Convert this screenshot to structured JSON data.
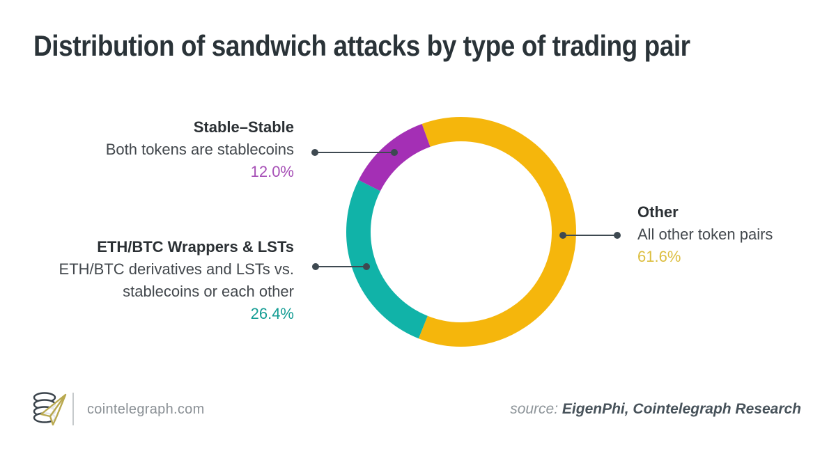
{
  "title": "Distribution of sandwich attacks by type of trading pair",
  "chart_data": {
    "type": "pie",
    "subtype": "donut",
    "title": "Distribution of sandwich attacks by type of trading pair",
    "start_angle_deg": -20,
    "legend_position": "callouts",
    "segments": [
      {
        "label": "Other",
        "desc_lines": [
          "All other token pairs"
        ],
        "value": 61.6,
        "display": "61.6%",
        "color": "#F5B60C",
        "pct_color": "#DCBE3F"
      },
      {
        "label": "ETH/BTC Wrappers & LSTs",
        "desc_lines": [
          "ETH/BTC derivatives and LSTs vs.",
          "stablecoins or each other"
        ],
        "value": 26.4,
        "display": "26.4%",
        "color": "#11B3A8",
        "pct_color": "#149D94"
      },
      {
        "label": "Stable–Stable",
        "desc_lines": [
          "Both tokens are stablecoins"
        ],
        "value": 12.0,
        "display": "12.0%",
        "color": "#A42FB5",
        "pct_color": "#A64FB6"
      }
    ]
  },
  "footer": {
    "brand": "cointelegraph.com",
    "source_prefix": "source:",
    "source_names": "EigenPhi, Cointelegraph Research"
  },
  "style": {
    "callout_color": "#3E4951",
    "title_color": "#2A3338"
  }
}
